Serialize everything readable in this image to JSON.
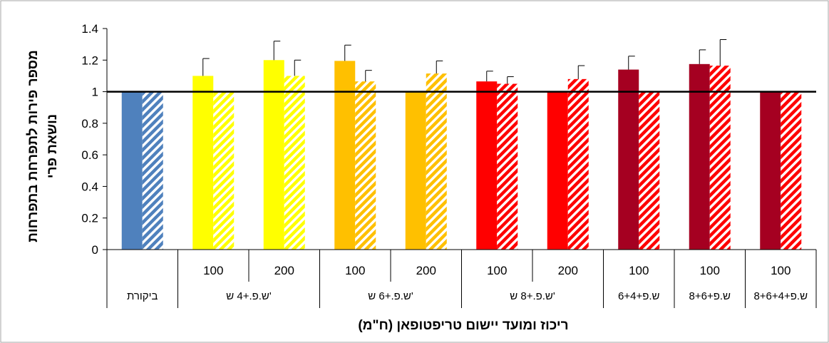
{
  "chart_data": {
    "type": "bar",
    "xlabel": "ריכוז ומועד יישום טריפטופאן (ח\"מ)",
    "ylabel_lines": [
      "מספר פירות לתפרחת בתפרחות",
      "נושאת פרי"
    ],
    "ylim": [
      0,
      1.4
    ],
    "yticks": [
      "0",
      "0.2",
      "0.4",
      "0.6",
      "0.8",
      "1",
      "1.2",
      "1.4"
    ],
    "reference_line": 1,
    "grid": false,
    "groups": [
      {
        "label": "ביקורת",
        "span": 1
      },
      {
        "label": "ש.פ.+4 ש'",
        "span": 2
      },
      {
        "label": "ש.פ.+6 ש'",
        "span": 2
      },
      {
        "label": "ש.פ.+8 ש'",
        "span": 2
      },
      {
        "label": "ש.פ+6+4",
        "span": 1
      },
      {
        "label": "ש.פ+8+6",
        "span": 1
      },
      {
        "label": "ש.פ+8+6+4",
        "span": 1
      }
    ],
    "categories": [
      "",
      "100",
      "200",
      "100",
      "200",
      "100",
      "200",
      "100",
      "100",
      "100"
    ],
    "category_colors": [
      "#4F81BD",
      "#FFFF00",
      "#FFFF00",
      "#FFC000",
      "#FFC000",
      "#FF0000",
      "#FF0000",
      "#A50021",
      "#A50021",
      "#A50021"
    ],
    "stripe_colors": [
      "#4F81BD",
      "#FFFF00",
      "#FFFF00",
      "#FFC000",
      "#FFC000",
      "#FF0000",
      "#FF0000",
      "#FF0000",
      "#FF0000",
      "#FF0000"
    ],
    "series": [
      {
        "style": "solid",
        "values": [
          1.0,
          1.1,
          1.2,
          1.195,
          1.0,
          1.065,
          1.0,
          1.14,
          1.175,
          1.0
        ],
        "errors": [
          0,
          0.11,
          0.12,
          0.1,
          0,
          0.065,
          0,
          0.085,
          0.09,
          0
        ]
      },
      {
        "style": "striped",
        "values": [
          1.0,
          1.0,
          1.1,
          1.065,
          1.115,
          1.05,
          1.08,
          1.0,
          1.165,
          1.0
        ],
        "errors": [
          0,
          0,
          0.1,
          0.07,
          0.08,
          0.045,
          0.085,
          0,
          0.165,
          0
        ]
      }
    ]
  }
}
